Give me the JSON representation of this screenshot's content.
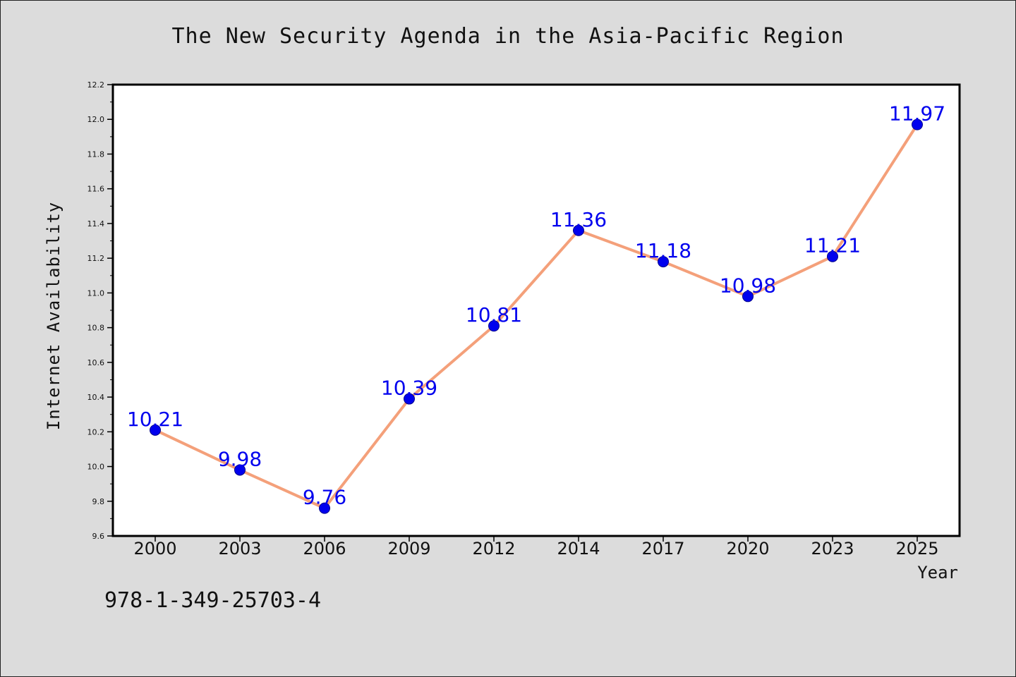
{
  "chart_data": {
    "type": "line",
    "title": "The New Security Agenda in the Asia-Pacific Region",
    "xlabel": "Year",
    "ylabel": "Internet Availability",
    "categories": [
      "2000",
      "2003",
      "2006",
      "2009",
      "2012",
      "2014",
      "2017",
      "2020",
      "2023",
      "2025"
    ],
    "series": [
      {
        "values": [
          10.21,
          9.98,
          9.76,
          10.39,
          10.81,
          11.36,
          11.18,
          10.98,
          11.21,
          11.97
        ],
        "labels": [
          "10.21",
          "9.98",
          "9.76",
          "10.39",
          "10.81",
          "11.36",
          "11.18",
          "10.98",
          "11.21",
          "11.97"
        ]
      }
    ],
    "ylim": [
      9.6,
      12.2
    ],
    "yticks": [
      "9.6",
      "9.8",
      "10.0",
      "10.2",
      "10.4",
      "10.6",
      "10.8",
      "11.0",
      "11.2",
      "11.4",
      "11.6",
      "11.8",
      "12.0",
      "12.2"
    ],
    "grid": false,
    "line_color": "#f4a07a",
    "marker_color": "#0000ee",
    "label_color": "#0000ee"
  },
  "footer": {
    "isbn": "978-1-349-25703-4"
  }
}
